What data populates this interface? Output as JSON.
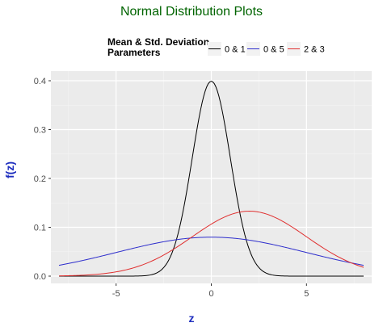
{
  "chart_data": {
    "type": "line",
    "title": "Normal Distribution Plots",
    "xlabel": "z",
    "ylabel": "f(z)",
    "xlim": [
      -8,
      8
    ],
    "ylim": [
      0,
      0.4
    ],
    "x_ticks": [
      -5,
      0,
      5
    ],
    "y_ticks": [
      0.0,
      0.1,
      0.2,
      0.3,
      0.4
    ],
    "x_tick_labels": [
      "-5",
      "0",
      "5"
    ],
    "y_tick_labels": [
      "0.0",
      "0.1",
      "0.2",
      "0.3",
      "0.4"
    ],
    "grid": true,
    "legend_position": "top",
    "legend_title": "Mean & Std. Deviation\nParameters",
    "series": [
      {
        "name": "0 & 1",
        "mean": 0,
        "sd": 1,
        "color": "#000000",
        "x": [
          -8,
          -4,
          -3,
          -2.5,
          -2,
          -1.5,
          -1,
          -0.5,
          0,
          0.5,
          1,
          1.5,
          2,
          2.5,
          3,
          4,
          8
        ],
        "y": [
          0,
          0.0001,
          0.0044,
          0.0175,
          0.054,
          0.1295,
          0.242,
          0.3521,
          0.3989,
          0.3521,
          0.242,
          0.1295,
          0.054,
          0.0175,
          0.0044,
          0.0001,
          0
        ]
      },
      {
        "name": "0 & 5",
        "mean": 0,
        "sd": 5,
        "color": "#2d2dcc",
        "x": [
          -8,
          -6,
          -4,
          -2,
          0,
          2,
          4,
          6,
          8
        ],
        "y": [
          0.0222,
          0.0389,
          0.0579,
          0.0737,
          0.0798,
          0.0737,
          0.0579,
          0.0389,
          0.0222
        ]
      },
      {
        "name": "2 & 3",
        "mean": 2,
        "sd": 3,
        "color": "#e03030",
        "x": [
          -8,
          -6,
          -4,
          -2,
          -1,
          0,
          1,
          2,
          3,
          4,
          5,
          6,
          8
        ],
        "y": [
          0.0005,
          0.0038,
          0.018,
          0.0547,
          0.0807,
          0.1065,
          0.1258,
          0.133,
          0.1258,
          0.1065,
          0.0807,
          0.0547,
          0.018
        ]
      }
    ]
  }
}
